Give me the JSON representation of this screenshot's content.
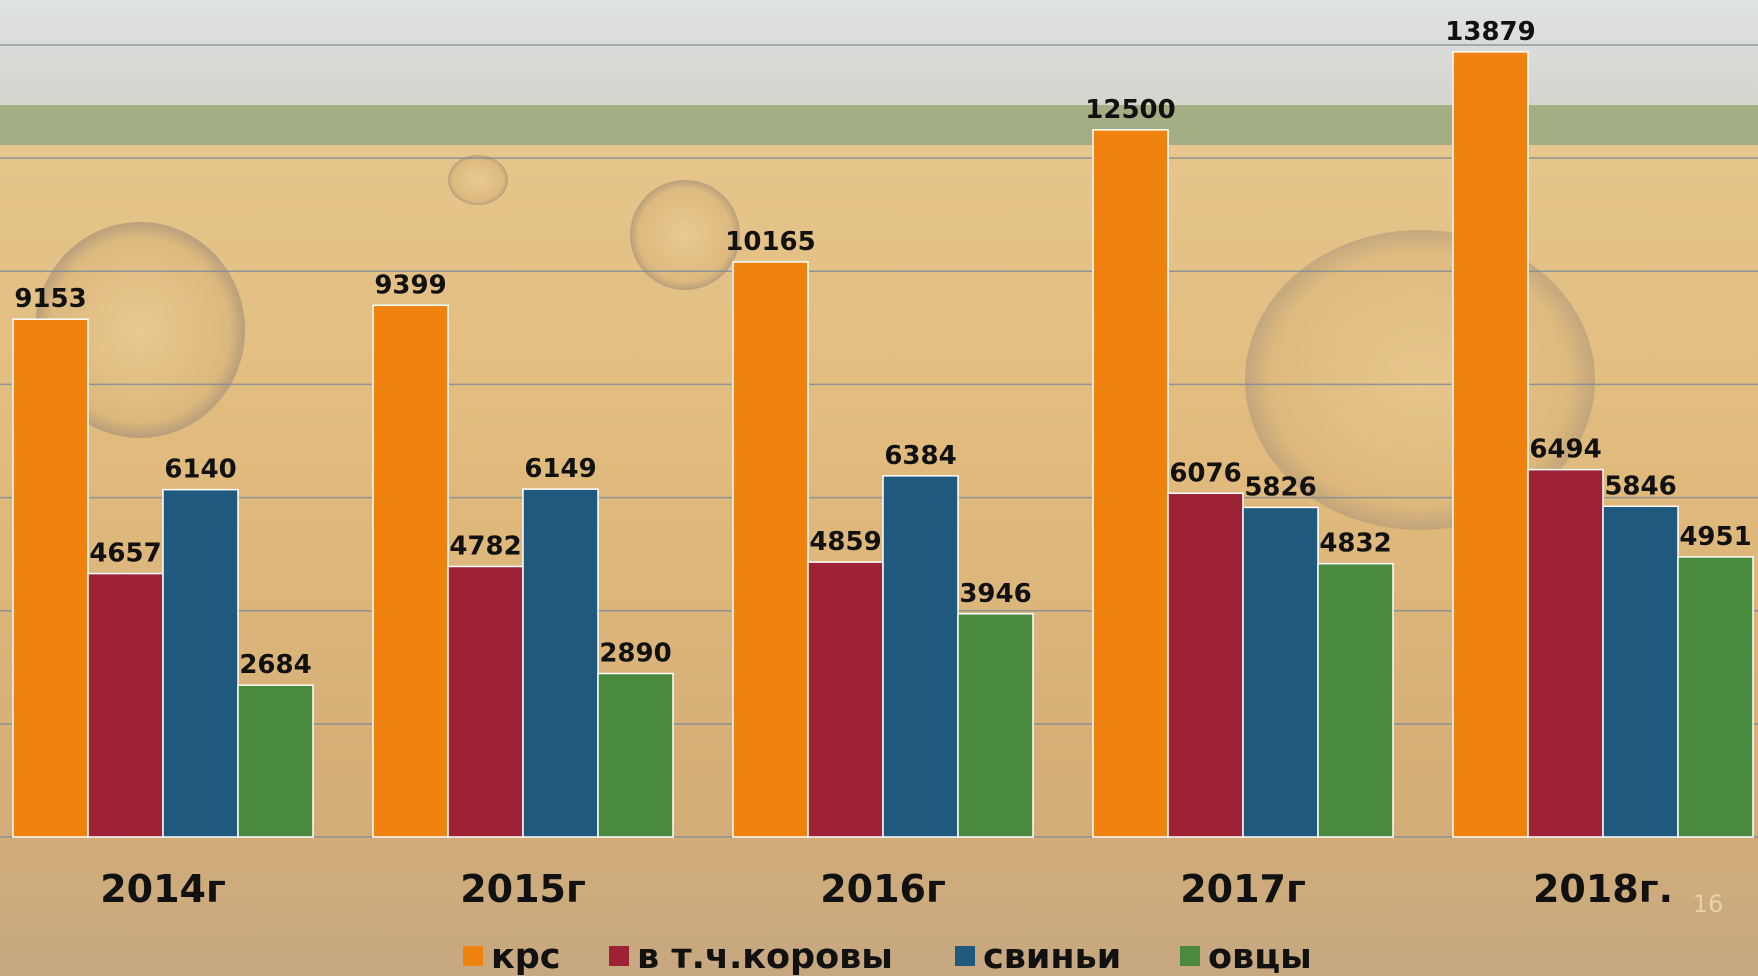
{
  "chart_data": {
    "type": "bar",
    "categories": [
      "2014г",
      "2015г",
      "2016г",
      "2017г",
      "2018г."
    ],
    "series": [
      {
        "name": "крс",
        "color": "#f0820f",
        "values": [
          9153,
          9399,
          10165,
          12500,
          13879
        ]
      },
      {
        "name": "в т.ч.коровы",
        "color": "#9e2236",
        "values": [
          4657,
          4782,
          4859,
          6076,
          6494
        ]
      },
      {
        "name": "свиньи",
        "color": "#1f5a7e",
        "values": [
          6140,
          6149,
          6384,
          5826,
          5846
        ]
      },
      {
        "name": "овцы",
        "color": "#4a8a3f",
        "values": [
          2684,
          2890,
          3946,
          4832,
          4951
        ]
      }
    ],
    "ylim": [
      0,
      14000
    ],
    "yticks": [
      0,
      2000,
      4000,
      6000,
      8000,
      10000,
      12000,
      14000
    ],
    "grid": true,
    "legend": "bottom",
    "page_number": "16"
  }
}
